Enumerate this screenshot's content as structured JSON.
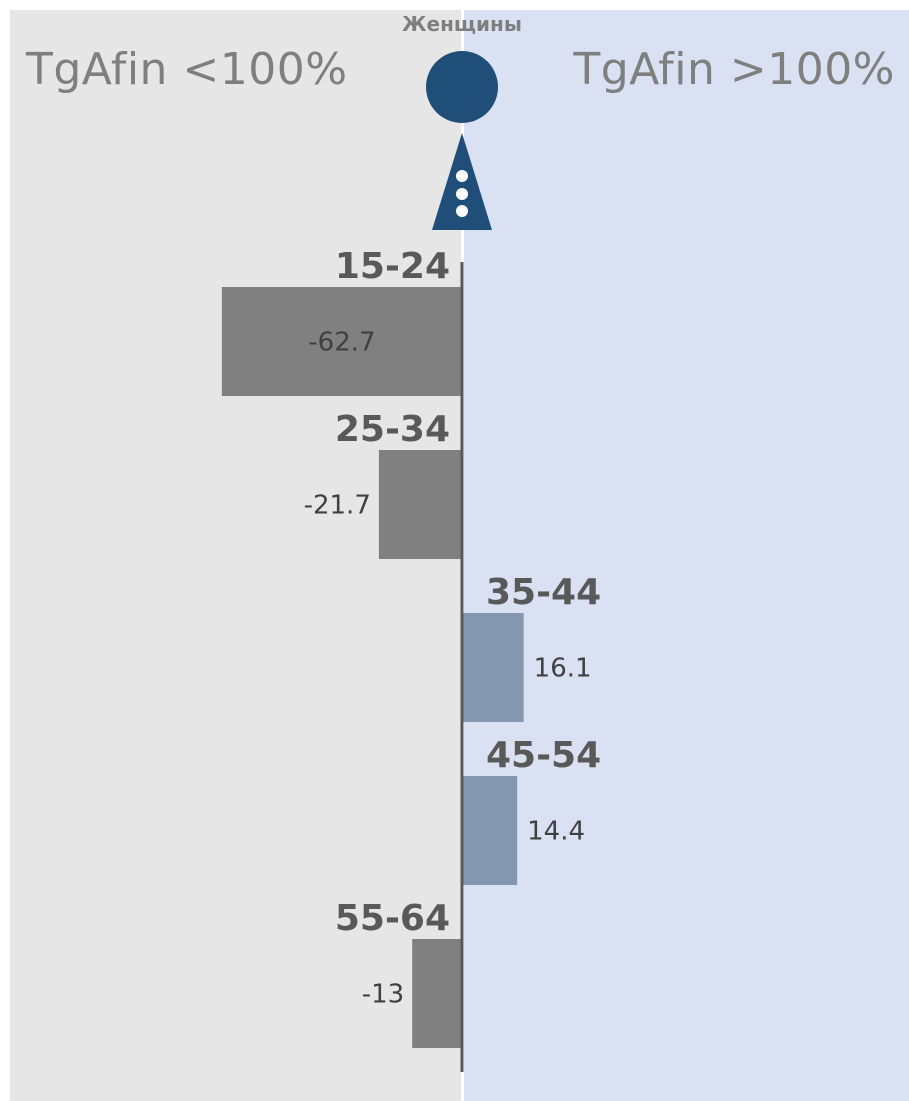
{
  "header": {
    "center_label": "Женщины",
    "left_title": "TgAfin <100%",
    "right_title": "TgAfin >100%"
  },
  "colors": {
    "left_panel": "#e6e6e6",
    "right_panel": "#d9e1f2",
    "negative_bar": "#808080",
    "positive_bar": "#8497b0",
    "icon": "#1f4e79",
    "axis": "#595959"
  },
  "icon_name": "woman-figure-icon",
  "chart_data": {
    "type": "bar",
    "orientation": "horizontal",
    "categories": [
      "15-24",
      "25-34",
      "35-44",
      "45-54",
      "55-64"
    ],
    "values": [
      -62.7,
      -21.7,
      16.1,
      14.4,
      -13
    ],
    "value_labels": [
      "-62.7",
      "-21.7",
      "16.1",
      "14.4",
      "-13"
    ],
    "title": "Женщины",
    "xlabel": "",
    "ylabel": "",
    "xlim": [
      -117,
      117
    ],
    "grid": false,
    "legend": "none"
  }
}
